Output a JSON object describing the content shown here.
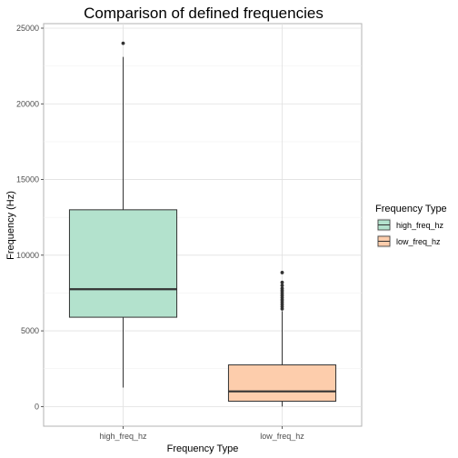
{
  "chart_data": {
    "type": "boxplot",
    "title": "Comparison of defined frequencies",
    "xlabel": "Frequency Type",
    "ylabel": "Frequency (Hz)",
    "ylim": [
      -1300,
      25300
    ],
    "y_ticks": [
      0,
      5000,
      10000,
      15000,
      20000,
      25000
    ],
    "y_tick_labels": [
      "0",
      "5000",
      "10000",
      "15000",
      "20000",
      "25000"
    ],
    "categories": [
      "high_freq_hz",
      "low_freq_hz"
    ],
    "grid": true,
    "legend": {
      "title": "Frequency Type",
      "position": "right",
      "entries": [
        "high_freq_hz",
        "low_freq_hz"
      ]
    },
    "series": [
      {
        "name": "high_freq_hz",
        "color": "#b3e2cd",
        "whisker_low": 1250,
        "q1": 5900,
        "median": 7750,
        "q3": 13000,
        "whisker_high": 23100,
        "outliers": [
          24000
        ]
      },
      {
        "name": "low_freq_hz",
        "color": "#fdcdac",
        "whisker_low": 0,
        "q1": 350,
        "median": 1000,
        "q3": 2750,
        "whisker_high": 6300,
        "outliers": [
          6450,
          6600,
          6750,
          6900,
          7050,
          7200,
          7350,
          7500,
          7650,
          7800,
          8000,
          8200,
          8850
        ]
      }
    ]
  }
}
